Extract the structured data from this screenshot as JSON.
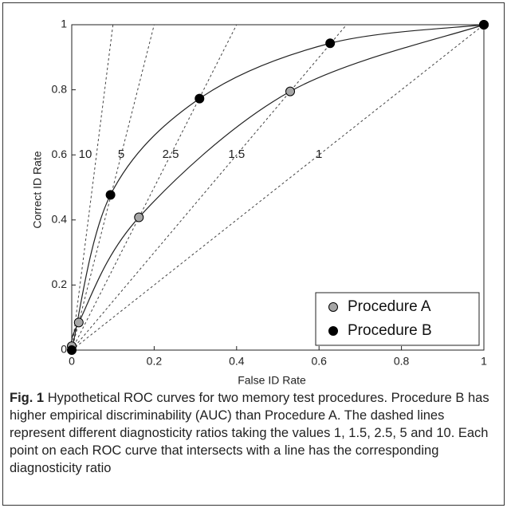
{
  "chart_data": {
    "type": "scatter",
    "x_label": "False ID Rate",
    "y_label": "Correct ID Rate",
    "xlim": [
      0,
      1
    ],
    "ylim": [
      0,
      1
    ],
    "xticks": [
      0,
      0.2,
      0.4,
      0.6,
      0.8,
      1
    ],
    "yticks": [
      0,
      0.2,
      0.4,
      0.6,
      0.8,
      1
    ],
    "series": [
      {
        "name": "Procedure A",
        "color": "#a6a6a6",
        "x": [
          0,
          0.017,
          0.163,
          0.53,
          1
        ],
        "y": [
          0.012,
          0.085,
          0.408,
          0.795,
          1
        ]
      },
      {
        "name": "Procedure B",
        "color": "#000000",
        "x": [
          0,
          0.094,
          0.31,
          0.627,
          1
        ],
        "y": [
          0,
          0.477,
          0.773,
          0.943,
          1
        ]
      }
    ],
    "diagnosticity_lines": [
      10,
      5,
      2.5,
      1.5,
      1
    ],
    "legend": "lower right"
  },
  "caption": {
    "label": "Fig. 1",
    "text": "Hypothetical ROC curves for two memory test procedures. Procedure B has higher empirical discriminability (AUC) than Procedure A. The dashed lines represent different diagnosticity ratios taking the values 1, 1.5, 2.5, 5 and 10. Each point on each ROC curve that intersects with a line has the corresponding diagnosticity ratio"
  }
}
